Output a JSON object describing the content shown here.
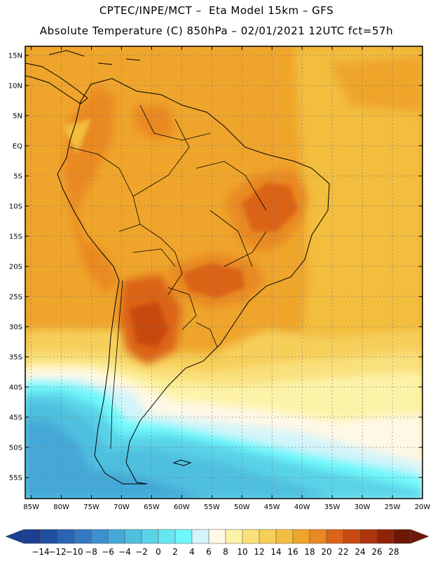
{
  "title": {
    "line1": "CPTEC/INPE/MCT –  Eta Model 15km – GFS",
    "line2": "Absolute Temperature (C) 850hPa – 02/01/2021 12UTC fct=57h"
  },
  "map": {
    "lon_range": [
      -86,
      -20
    ],
    "lat_range": [
      -58.5,
      16.5
    ],
    "lon_ticks": [
      "85W",
      "80W",
      "75W",
      "70W",
      "65W",
      "60W",
      "55W",
      "50W",
      "45W",
      "40W",
      "35W",
      "30W",
      "25W",
      "20W"
    ],
    "lon_tick_values": [
      -85,
      -80,
      -75,
      -70,
      -65,
      -60,
      -55,
      -50,
      -45,
      -40,
      -35,
      -30,
      -25,
      -20
    ],
    "lat_ticks": [
      "15N",
      "10N",
      "5N",
      "EQ",
      "5S",
      "10S",
      "15S",
      "20S",
      "25S",
      "30S",
      "35S",
      "40S",
      "45S",
      "50S",
      "55S"
    ],
    "lat_tick_values": [
      15,
      10,
      5,
      0,
      -5,
      -10,
      -15,
      -20,
      -25,
      -30,
      -35,
      -40,
      -45,
      -50,
      -55
    ],
    "gridlines": true
  },
  "colorbar": {
    "labels": [
      "-14",
      "-12",
      "-10",
      "-8",
      "-6",
      "-4",
      "-2",
      "0",
      "2",
      "4",
      "6",
      "8",
      "10",
      "12",
      "14",
      "16",
      "18",
      "20",
      "22",
      "24",
      "26",
      "28"
    ],
    "colors": [
      "#1d3f8f",
      "#1f4fa0",
      "#2a64b3",
      "#3579c2",
      "#3d90cc",
      "#45a8d6",
      "#4fbfdf",
      "#5ad3e8",
      "#66e6f0",
      "#6ff8fb",
      "#d3f4fa",
      "#fff8e6",
      "#fdf3a8",
      "#f9e07b",
      "#f6cf5a",
      "#f3bd3e",
      "#efa52c",
      "#e98922",
      "#db6418",
      "#c84a10",
      "#ad340b",
      "#8f2409",
      "#6c1707"
    ]
  }
}
